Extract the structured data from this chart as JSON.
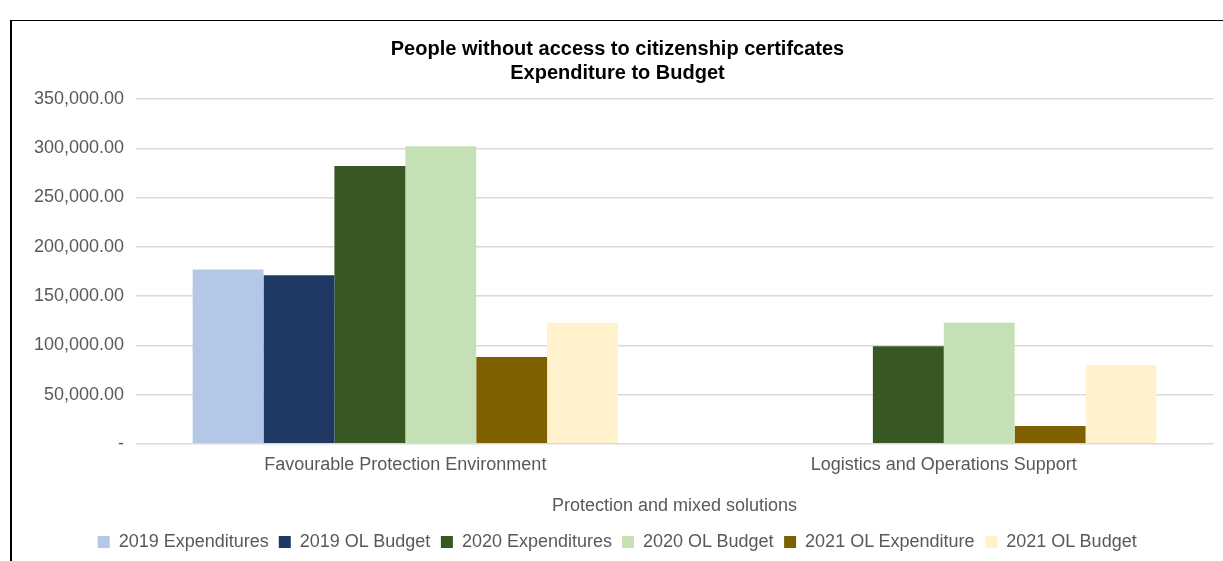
{
  "chart_data": {
    "type": "bar",
    "title": [
      "People without access to citizenship certifcates",
      "Expenditure to Budget"
    ],
    "categories": [
      "Favourable Protection Environment",
      "Logistics and Operations Support"
    ],
    "xlabel": "Protection and mixed solutions",
    "series": [
      {
        "name": "2019 Expenditures",
        "color": "#b4c7e7",
        "values": [
          177000,
          null
        ]
      },
      {
        "name": "2019 OL Budget",
        "color": "#203864",
        "values": [
          171000,
          null
        ]
      },
      {
        "name": "2020 Expenditures",
        "color": "#385723",
        "values": [
          282000,
          99000
        ]
      },
      {
        "name": "2020 OL Budget",
        "color": "#c5e0b4",
        "values": [
          302000,
          123000
        ]
      },
      {
        "name": "2021 OL Expenditure",
        "color": "#7f6000",
        "values": [
          88000,
          18000
        ]
      },
      {
        "name": "2021 OL Budget",
        "color": "#fff2cc",
        "values": [
          123000,
          80000
        ]
      }
    ],
    "ylim": [
      0,
      350000
    ],
    "yticks": [
      {
        "value": 0,
        "label": "-"
      },
      {
        "value": 50000,
        "label": "50,000.00"
      },
      {
        "value": 100000,
        "label": "100,000.00"
      },
      {
        "value": 150000,
        "label": "150,000.00"
      },
      {
        "value": 200000,
        "label": "200,000.00"
      },
      {
        "value": 250000,
        "label": "250,000.00"
      },
      {
        "value": 300000,
        "label": "300,000.00"
      },
      {
        "value": 350000,
        "label": "350,000.00"
      }
    ],
    "grid": "y",
    "legend": "bottom"
  }
}
